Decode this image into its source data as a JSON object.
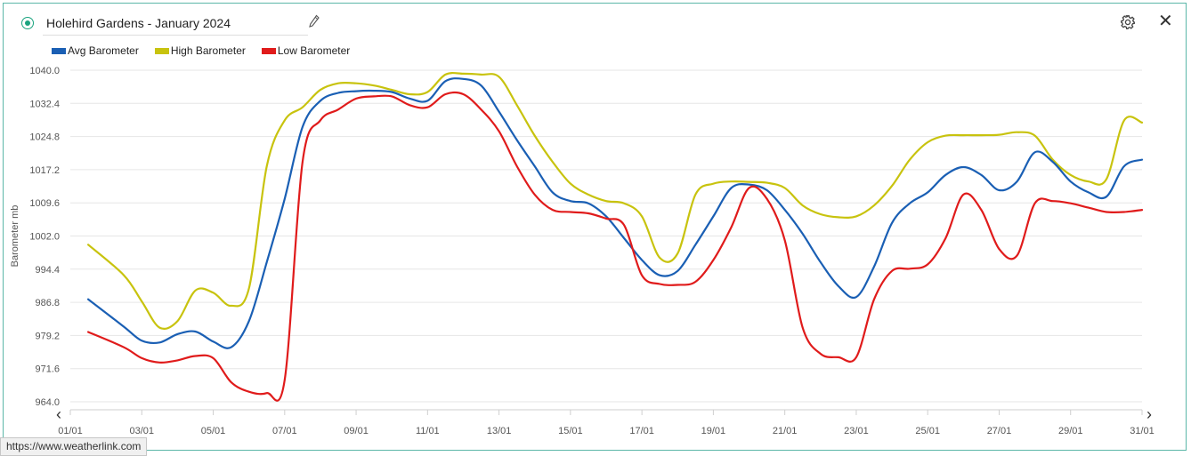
{
  "header": {
    "title": "Holehird Gardens - January 2024"
  },
  "colors": {
    "avg": "#1a5fb4",
    "high": "#c8c30e",
    "low": "#e01b1b",
    "accent": "#19a37e"
  },
  "icons": {
    "edit": "pencil-icon",
    "settings": "gear-icon",
    "close": "close-icon",
    "prev": "chevron-left-icon",
    "next": "chevron-right-icon"
  },
  "close_glyph": "✕",
  "prev_glyph": "‹",
  "next_glyph": "›",
  "status_url": "https://www.weatherlink.com",
  "chart_data": {
    "type": "line",
    "title": "",
    "xlabel": "",
    "ylabel": "Barometer mb",
    "ylim": [
      964.0,
      1040.0
    ],
    "yticks": [
      "1040.0",
      "1032.4",
      "1024.8",
      "1017.2",
      "1009.6",
      "1002.0",
      "994.4",
      "986.8",
      "979.2",
      "971.6",
      "964.0"
    ],
    "xlim": [
      1,
      31
    ],
    "xticks": [
      "01/01",
      "03/01",
      "05/01",
      "07/01",
      "09/01",
      "11/01",
      "13/01",
      "15/01",
      "17/01",
      "19/01",
      "21/01",
      "23/01",
      "25/01",
      "27/01",
      "29/01",
      "31/01"
    ],
    "legend_position": "top-left",
    "grid": true,
    "series": [
      {
        "name": "Avg Barometer",
        "color": "#1a5fb4",
        "x": [
          1.5,
          2.5,
          3.0,
          3.5,
          4.0,
          4.5,
          5.0,
          5.5,
          6.0,
          6.5,
          7.0,
          7.5,
          8.0,
          8.5,
          9.0,
          9.5,
          10.0,
          10.5,
          11.0,
          11.5,
          12.0,
          12.5,
          13.0,
          13.5,
          14.0,
          14.5,
          15.0,
          15.5,
          16.0,
          16.5,
          17.0,
          17.5,
          18.0,
          18.5,
          19.0,
          19.5,
          20.0,
          20.5,
          21.0,
          21.5,
          22.0,
          22.5,
          23.0,
          23.5,
          24.0,
          24.5,
          25.0,
          25.5,
          26.0,
          26.5,
          27.0,
          27.5,
          28.0,
          28.5,
          29.0,
          29.5,
          30.0,
          30.5,
          31.0
        ],
        "y": [
          987.5,
          981.2,
          978.0,
          977.6,
          979.5,
          980.1,
          977.8,
          976.5,
          982.5,
          996.0,
          1010.5,
          1027.0,
          1033.0,
          1034.8,
          1035.2,
          1035.3,
          1035.0,
          1033.5,
          1033.0,
          1037.5,
          1038.0,
          1036.5,
          1030.5,
          1024.0,
          1018.0,
          1012.0,
          1010.0,
          1009.5,
          1006.5,
          1001.5,
          996.5,
          993.0,
          994.0,
          1000.0,
          1006.5,
          1013.0,
          1013.8,
          1012.5,
          1008.0,
          1002.5,
          996.0,
          990.5,
          988.0,
          995.0,
          1005.0,
          1009.5,
          1012.0,
          1016.0,
          1017.8,
          1016.0,
          1012.5,
          1014.5,
          1021.2,
          1019.0,
          1014.5,
          1012.0,
          1011.0,
          1018.0,
          1019.5
        ]
      },
      {
        "name": "High Barometer",
        "color": "#c8c30e",
        "x": [
          1.5,
          2.5,
          3.0,
          3.5,
          4.0,
          4.5,
          5.0,
          5.5,
          6.0,
          6.5,
          7.0,
          7.5,
          8.0,
          8.5,
          9.0,
          9.5,
          10.0,
          10.5,
          11.0,
          11.5,
          12.0,
          12.5,
          13.0,
          13.5,
          14.0,
          14.5,
          15.0,
          15.5,
          16.0,
          16.5,
          17.0,
          17.5,
          18.0,
          18.5,
          19.0,
          19.5,
          20.0,
          20.5,
          21.0,
          21.5,
          22.0,
          22.5,
          23.0,
          23.5,
          24.0,
          24.5,
          25.0,
          25.5,
          26.0,
          26.5,
          27.0,
          27.5,
          28.0,
          28.5,
          29.0,
          29.5,
          30.0,
          30.5,
          31.0
        ],
        "y": [
          1000.0,
          993.0,
          987.0,
          981.0,
          982.5,
          989.5,
          989.0,
          986.0,
          990.0,
          1018.0,
          1028.5,
          1031.5,
          1035.5,
          1037.0,
          1037.0,
          1036.5,
          1035.5,
          1034.5,
          1035.0,
          1039.0,
          1039.2,
          1039.0,
          1038.5,
          1032.0,
          1025.0,
          1019.0,
          1014.0,
          1011.5,
          1010.0,
          1009.5,
          1006.5,
          997.0,
          998.0,
          1011.5,
          1014.0,
          1014.5,
          1014.4,
          1014.2,
          1013.0,
          1009.0,
          1007.0,
          1006.3,
          1006.5,
          1009.0,
          1013.5,
          1019.5,
          1023.5,
          1025.0,
          1025.1,
          1025.1,
          1025.2,
          1025.8,
          1025.0,
          1019.5,
          1016.0,
          1014.5,
          1015.0,
          1028.5,
          1028.0
        ]
      },
      {
        "name": "Low Barometer",
        "color": "#e01b1b",
        "x": [
          1.5,
          2.5,
          3.0,
          3.5,
          4.0,
          4.5,
          5.0,
          5.5,
          6.0,
          6.5,
          7.0,
          7.5,
          8.0,
          8.5,
          9.0,
          9.5,
          10.0,
          10.5,
          11.0,
          11.5,
          12.0,
          12.5,
          13.0,
          13.5,
          14.0,
          14.5,
          15.0,
          15.5,
          16.0,
          16.5,
          17.0,
          17.5,
          18.0,
          18.5,
          19.0,
          19.5,
          20.0,
          20.5,
          21.0,
          21.5,
          22.0,
          22.5,
          23.0,
          23.5,
          24.0,
          24.5,
          25.0,
          25.5,
          26.0,
          26.5,
          27.0,
          27.5,
          28.0,
          28.5,
          29.0,
          29.5,
          30.0,
          30.5,
          31.0
        ],
        "y": [
          980.0,
          976.5,
          974.0,
          973.0,
          973.5,
          974.5,
          974.0,
          968.5,
          966.3,
          966.0,
          969.0,
          1019.0,
          1028.5,
          1031.0,
          1033.5,
          1034.0,
          1034.0,
          1032.0,
          1031.5,
          1034.5,
          1034.5,
          1031.0,
          1026.0,
          1018.0,
          1011.5,
          1008.0,
          1007.5,
          1007.2,
          1006.0,
          1004.5,
          993.0,
          991.0,
          990.8,
          991.5,
          996.5,
          1004.0,
          1013.0,
          1010.5,
          1001.0,
          981.0,
          975.0,
          974.2,
          974.2,
          987.5,
          994.0,
          994.5,
          995.5,
          1001.5,
          1011.5,
          1008.0,
          999.0,
          997.5,
          1009.5,
          1010.0,
          1009.5,
          1008.5,
          1007.5,
          1007.5,
          1008.0
        ]
      }
    ]
  }
}
